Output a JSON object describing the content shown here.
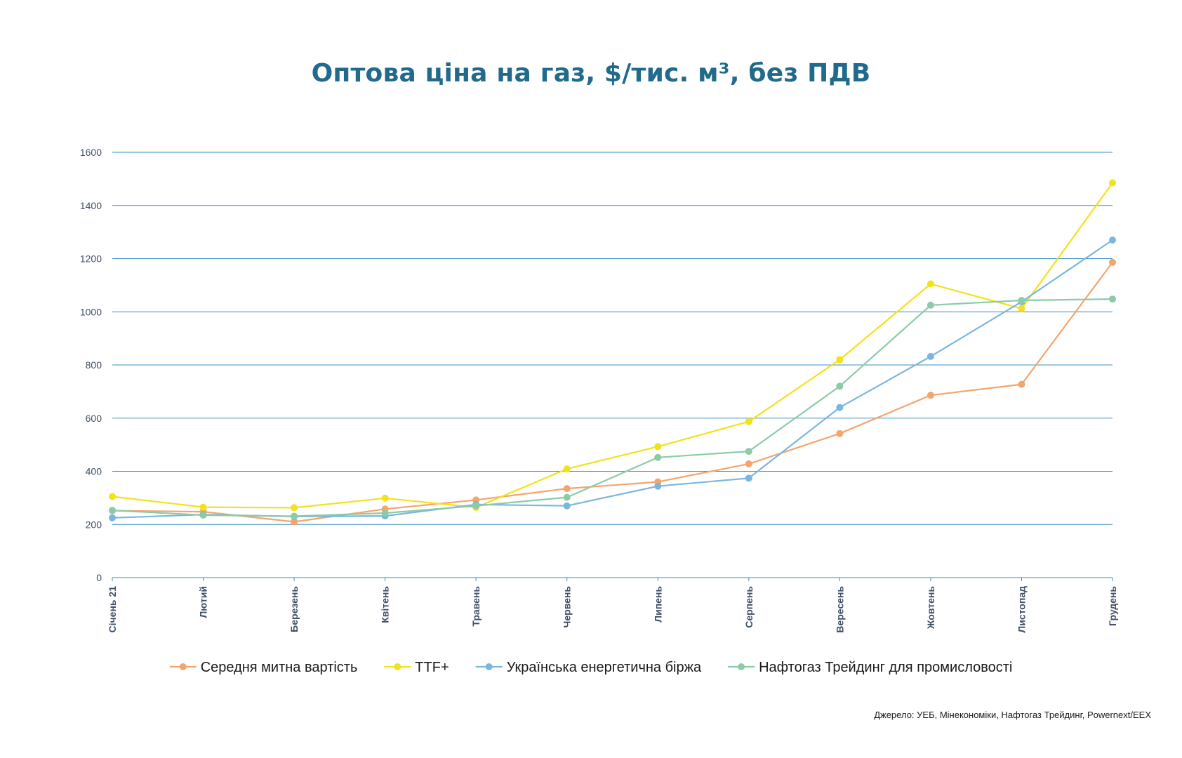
{
  "chart_data": {
    "type": "line",
    "title": "Оптова ціна на газ, $/тис. м³, без ПДВ",
    "categories": [
      "Січень 21",
      "Лютий",
      "Березень",
      "Квітень",
      "Травень",
      "Червень",
      "Липень",
      "Серпень",
      "Вересень",
      "Жовтень",
      "Листопад",
      "Грудень"
    ],
    "ylim": [
      0,
      1600
    ],
    "yticks": [
      0,
      200,
      400,
      600,
      800,
      1000,
      1200,
      1400,
      1600
    ],
    "grid": true,
    "legend_position": "bottom",
    "series": [
      {
        "name": "Середня митна вартість",
        "color": "#f4a56c",
        "values": [
          252,
          248,
          210,
          258,
          292,
          335,
          360,
          428,
          542,
          686,
          727,
          1186
        ]
      },
      {
        "name": "TTF+",
        "color": "#f2e21a",
        "values": [
          305,
          265,
          263,
          299,
          264,
          409,
          493,
          587,
          820,
          1105,
          1012,
          1485
        ]
      },
      {
        "name": "Українська енергетична біржа",
        "color": "#7ab6e0",
        "values": [
          225,
          237,
          230,
          232,
          275,
          270,
          344,
          374,
          640,
          832,
          1038,
          1270
        ]
      },
      {
        "name": "Нафтогаз Трейдинг для промисловості",
        "color": "#8ccba8",
        "values": [
          253,
          235,
          231,
          243,
          270,
          302,
          452,
          475,
          720,
          1025,
          1043,
          1048
        ]
      }
    ]
  },
  "source_note": "Джерело: УЕБ, Мінекономіки, Нафтогаз Трейдинг, Powernext/EEX"
}
